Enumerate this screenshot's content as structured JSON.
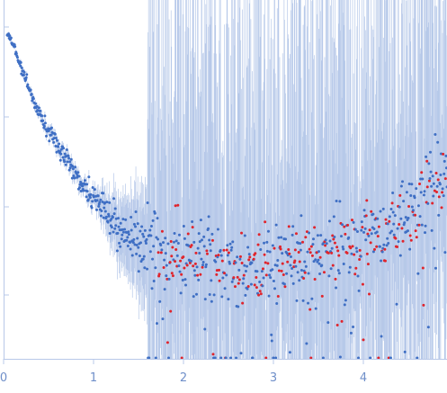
{
  "chart_data": {
    "type": "scatter",
    "title": "",
    "xlabel": "",
    "ylabel": "",
    "x_ticks": [
      "0",
      "1",
      "2",
      "3",
      "4"
    ],
    "x_tick_values": [
      0,
      1,
      2,
      3,
      4
    ],
    "xlim": [
      0,
      4.93
    ],
    "y_scale": "log",
    "y_tick_labels": [],
    "error_bars": true,
    "grid": false,
    "legend": "none",
    "colors": {
      "axis": "#b8c8e8",
      "tick_label": "#6f8fc9",
      "points": "#3f6fc4",
      "negative_points": "#e0242c",
      "error_bars": "#b7c9e9"
    },
    "series": [
      {
        "x": [
          0.05,
          0.12,
          0.2,
          0.3,
          0.4,
          0.5,
          0.6,
          0.7,
          0.8,
          0.9,
          1.0,
          1.1,
          1.2,
          1.3,
          1.4,
          1.5,
          1.6,
          1.7,
          1.8,
          1.9,
          2.0,
          2.2,
          2.4,
          2.6,
          2.8,
          3.0,
          3.2,
          3.4,
          3.6,
          3.8,
          4.0,
          4.2,
          4.4,
          4.6,
          4.8,
          4.9
        ],
        "y": [
          1.0,
          0.88,
          0.74,
          0.6,
          0.5,
          0.43,
          0.38,
          0.34,
          0.3,
          0.27,
          0.24,
          0.22,
          0.2,
          0.185,
          0.175,
          0.165,
          0.16,
          0.155,
          0.15,
          0.147,
          0.145,
          0.142,
          0.14,
          0.138,
          0.137,
          0.138,
          0.14,
          0.143,
          0.148,
          0.155,
          0.165,
          0.18,
          0.2,
          0.23,
          0.27,
          0.3
        ],
        "point_count": 900
      }
    ]
  }
}
